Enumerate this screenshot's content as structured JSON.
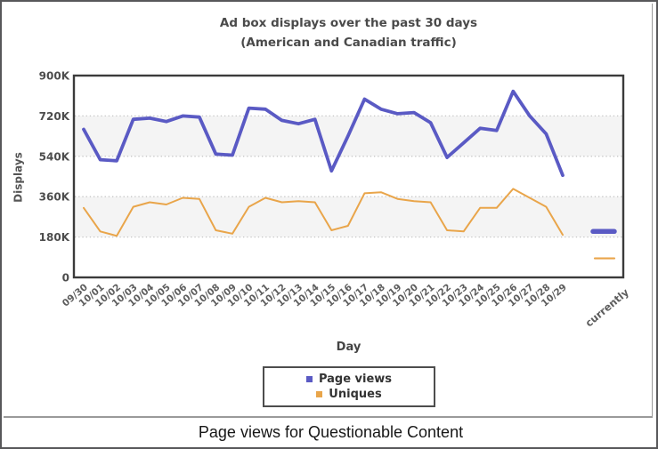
{
  "page": {
    "caption": "Page views for Questionable Content"
  },
  "chart_data": {
    "type": "line",
    "title": "Ad box displays over the past 30 days",
    "subtitle": "(American and Canadian traffic)",
    "xlabel": "Day",
    "ylabel": "Displays",
    "units": "displays, values in K (thousands)",
    "ylim_k": [
      0,
      900
    ],
    "yticks": [
      {
        "v": 0,
        "label": "0"
      },
      {
        "v": 180,
        "label": "180K"
      },
      {
        "v": 360,
        "label": "360K"
      },
      {
        "v": 540,
        "label": "540K"
      },
      {
        "v": 720,
        "label": "720K"
      },
      {
        "v": 900,
        "label": "900K"
      }
    ],
    "grid": "dotted horizontal gridlines, alternating shaded bands",
    "legend_position": "bottom center, boxed",
    "categories": [
      "09/30",
      "10/01",
      "10/02",
      "10/03",
      "10/04",
      "10/05",
      "10/06",
      "10/07",
      "10/08",
      "10/09",
      "10/10",
      "10/11",
      "10/12",
      "10/13",
      "10/14",
      "10/15",
      "10/16",
      "10/17",
      "10/18",
      "10/19",
      "10/20",
      "10/21",
      "10/22",
      "10/23",
      "10/24",
      "10/25",
      "10/26",
      "10/27",
      "10/28",
      "10/29"
    ],
    "series": [
      {
        "name": "Page views",
        "color": "#5a5ac4",
        "values_k": [
          660,
          525,
          520,
          705,
          710,
          695,
          720,
          715,
          550,
          545,
          755,
          750,
          700,
          685,
          705,
          475,
          630,
          795,
          750,
          730,
          735,
          690,
          535,
          600,
          665,
          655,
          830,
          720,
          640,
          455
        ]
      },
      {
        "name": "Uniques",
        "color": "#e9a54a",
        "values_k": [
          310,
          205,
          185,
          315,
          335,
          325,
          355,
          350,
          210,
          195,
          315,
          355,
          335,
          340,
          335,
          210,
          230,
          375,
          380,
          350,
          340,
          335,
          210,
          205,
          310,
          310,
          395,
          355,
          315,
          190
        ]
      }
    ],
    "currently": {
      "label": "currently",
      "page_views_k": 205,
      "uniques_k": 85
    }
  },
  "colors": {
    "page_views_line": "#5a5ac4",
    "uniques_line": "#e9a54a",
    "plot_border": "#3b3b3b",
    "gridline": "#c5c5c5",
    "band": "#f4f4f4",
    "tick_text": "#4d4d4d"
  }
}
